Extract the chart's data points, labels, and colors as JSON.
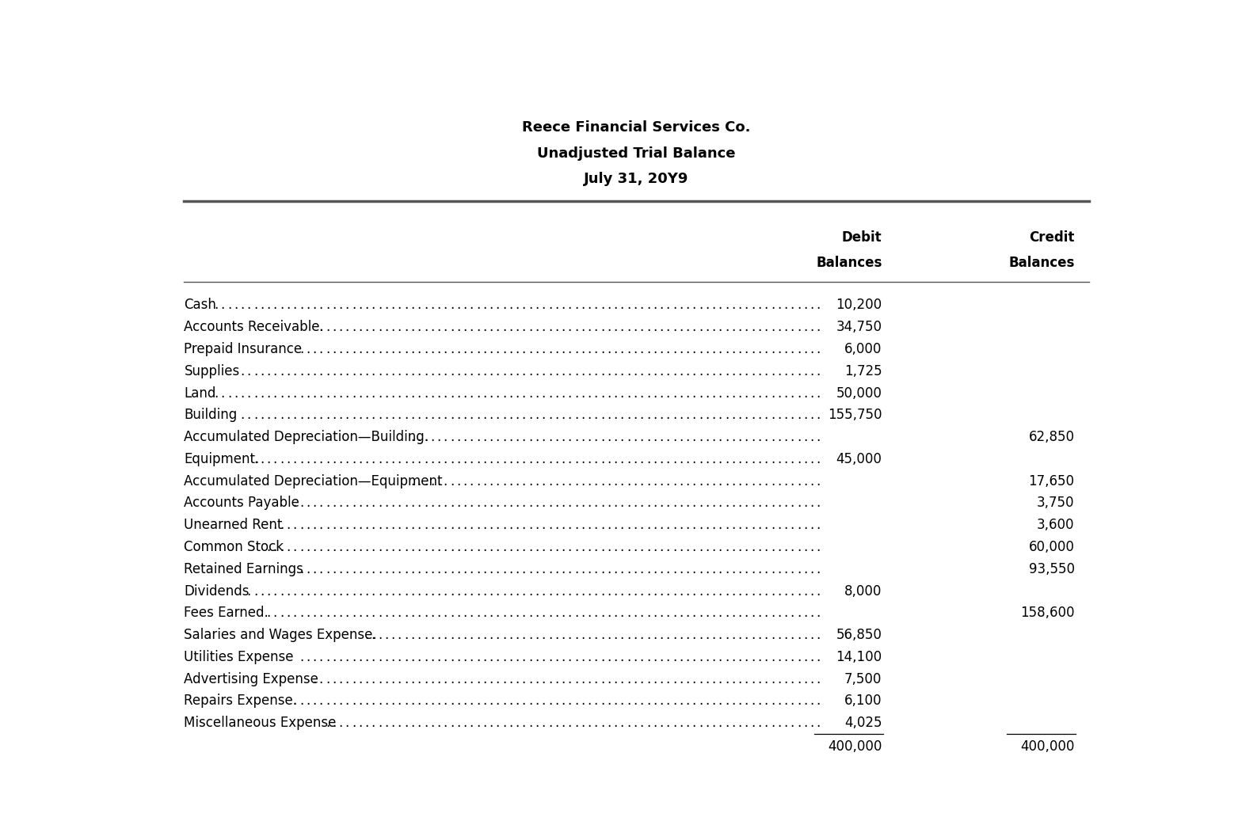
{
  "title_line1": "Reece Financial Services Co.",
  "title_line2": "Unadjusted Trial Balance",
  "title_line3": "July 31, 20Y9",
  "rows": [
    {
      "account": "Cash",
      "debit": "10,200",
      "credit": ""
    },
    {
      "account": "Accounts Receivable.",
      "debit": "34,750",
      "credit": ""
    },
    {
      "account": "Prepaid Insurance",
      "debit": "6,000",
      "credit": ""
    },
    {
      "account": "Supplies",
      "debit": "1,725",
      "credit": ""
    },
    {
      "account": "Land",
      "debit": "50,000",
      "credit": ""
    },
    {
      "account": "Building",
      "debit": "155,750",
      "credit": ""
    },
    {
      "account": "Accumulated Depreciation—Building.",
      "debit": "",
      "credit": "62,850"
    },
    {
      "account": "Equipment.",
      "debit": "45,000",
      "credit": ""
    },
    {
      "account": "Accumulated Depreciation—Equipment",
      "debit": "",
      "credit": "17,650"
    },
    {
      "account": "Accounts Payable",
      "debit": "",
      "credit": "3,750"
    },
    {
      "account": "Unearned Rent",
      "debit": "",
      "credit": "3,600"
    },
    {
      "account": "Common Stock",
      "debit": "",
      "credit": "60,000"
    },
    {
      "account": "Retained Earnings",
      "debit": "",
      "credit": "93,550"
    },
    {
      "account": "Dividends",
      "debit": "8,000",
      "credit": ""
    },
    {
      "account": "Fees Earned.",
      "debit": "",
      "credit": "158,600"
    },
    {
      "account": "Salaries and Wages Expense.",
      "debit": "56,850",
      "credit": ""
    },
    {
      "account": "Utilities Expense",
      "debit": "14,100",
      "credit": ""
    },
    {
      "account": "Advertising Expense",
      "debit": "7,500",
      "credit": ""
    },
    {
      "account": "Repairs Expense.",
      "debit": "6,100",
      "credit": ""
    },
    {
      "account": "Miscellaneous Expense",
      "debit": "4,025",
      "credit": ""
    }
  ],
  "total_debit": "400,000",
  "total_credit": "400,000",
  "bg_color": "#ffffff",
  "text_color": "#000000",
  "title_fontsize": 13,
  "body_fontsize": 12,
  "header_fontsize": 12
}
